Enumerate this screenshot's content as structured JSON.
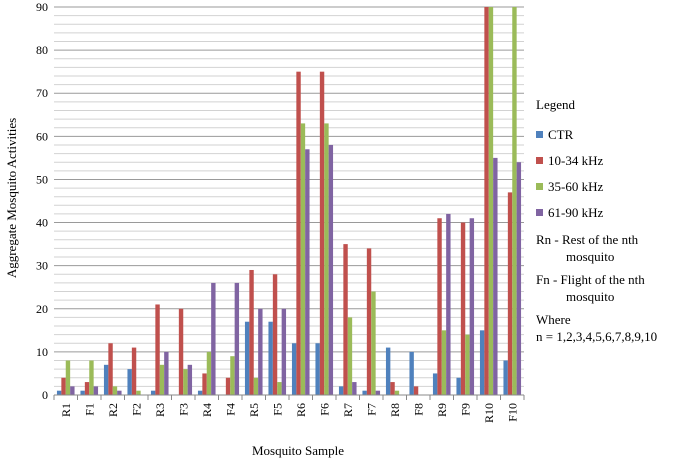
{
  "chart_data": {
    "type": "bar",
    "title": "",
    "xlabel": "Mosquito Sample",
    "ylabel": "Aggregate Mosquito Activities",
    "ylim": [
      0,
      90
    ],
    "yticks": [
      0,
      10,
      20,
      30,
      40,
      50,
      60,
      70,
      80,
      90
    ],
    "grid": true,
    "legend_position": "right",
    "categories": [
      "R1",
      "F1",
      "R2",
      "F2",
      "R3",
      "F3",
      "R4",
      "F4",
      "R5",
      "F5",
      "R6",
      "F6",
      "R7",
      "F7",
      "R8",
      "F8",
      "R9",
      "F9",
      "R10",
      "F10"
    ],
    "series": [
      {
        "name": "CTR",
        "color": "#4f81bd",
        "values": [
          1,
          1,
          7,
          6,
          1,
          0,
          1,
          0,
          17,
          17,
          12,
          12,
          2,
          1,
          11,
          10,
          5,
          4,
          15,
          8
        ]
      },
      {
        "name": "10-34 kHz",
        "color": "#c0504d",
        "values": [
          4,
          3,
          12,
          11,
          21,
          20,
          5,
          4,
          29,
          28,
          75,
          75,
          35,
          34,
          3,
          2,
          41,
          40,
          93,
          47
        ]
      },
      {
        "name": "35-60 kHz",
        "color": "#9bbb59",
        "values": [
          8,
          8,
          2,
          1,
          7,
          6,
          10,
          9,
          4,
          3,
          63,
          63,
          18,
          24,
          1,
          0,
          15,
          14,
          93,
          93
        ]
      },
      {
        "name": "61-90 kHz",
        "color": "#8064a2",
        "values": [
          2,
          2,
          1,
          0,
          10,
          7,
          26,
          26,
          20,
          20,
          57,
          58,
          3,
          1,
          0,
          0,
          42,
          41,
          55,
          54
        ]
      }
    ]
  },
  "legend": {
    "title": "Legend",
    "notes": {
      "rn_line1": "Rn - Rest of the nth",
      "rn_line2": "mosquito",
      "fn_line1": "Fn - Flight of the nth",
      "fn_line2": "mosquito",
      "where": "Where",
      "n_values": "n = 1,2,3,4,5,6,7,8,9,10"
    }
  }
}
